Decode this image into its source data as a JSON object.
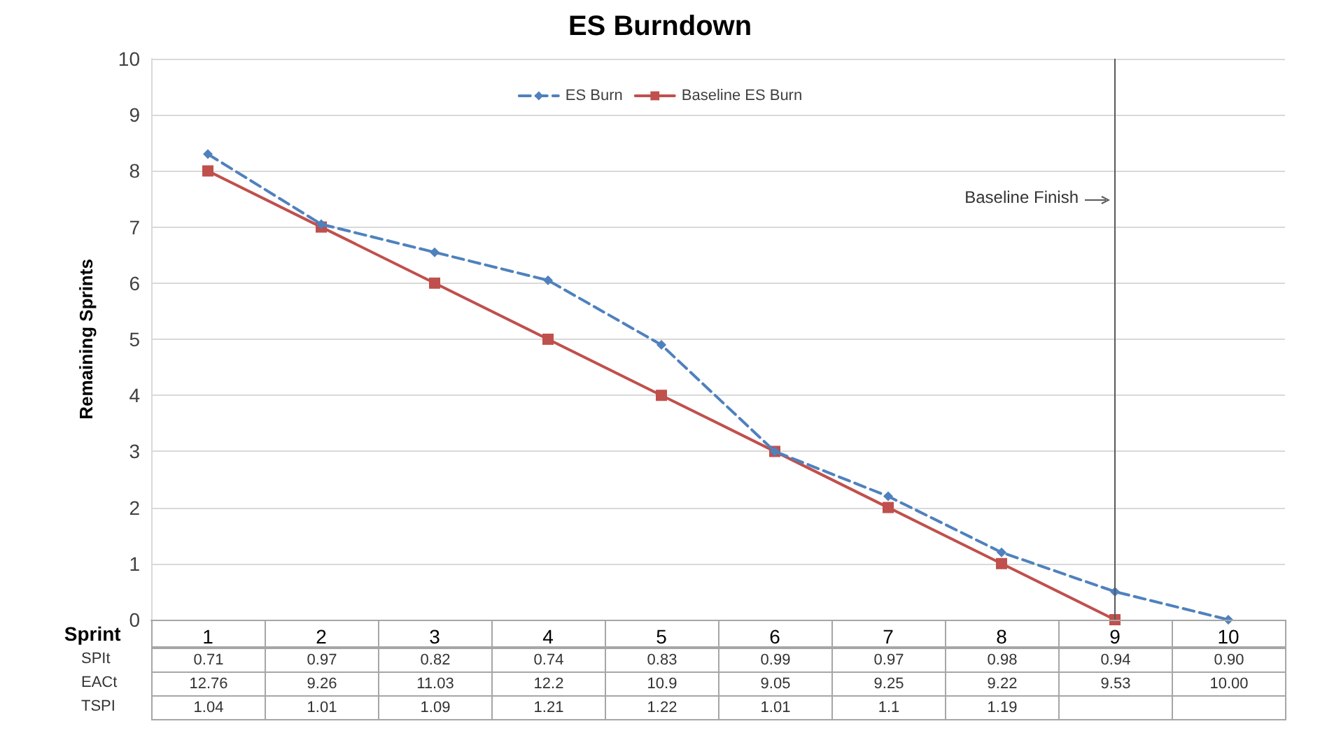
{
  "chart_data": {
    "type": "line",
    "title": "ES Burndown",
    "xlabel": "Sprint",
    "ylabel": "Remaining Sprints",
    "categories": [
      "1",
      "2",
      "3",
      "4",
      "5",
      "6",
      "7",
      "8",
      "9",
      "10"
    ],
    "series": [
      {
        "name": "ES Burn",
        "color": "#4f81bd",
        "marker": "diamond",
        "line_style": "dashed",
        "values": [
          8.3,
          7.05,
          6.55,
          6.05,
          4.9,
          3.0,
          2.2,
          1.2,
          0.5,
          0
        ]
      },
      {
        "name": "Baseline ES Burn",
        "color": "#c0504d",
        "marker": "square",
        "line_style": "solid",
        "values": [
          8,
          7,
          6,
          5,
          4,
          3,
          2,
          1,
          0,
          null
        ]
      }
    ],
    "ylim": [
      0,
      10
    ],
    "yticks": [
      0,
      1,
      2,
      3,
      4,
      5,
      6,
      7,
      8,
      9,
      10
    ],
    "grid": "y",
    "legend": "top",
    "ref_lines": [
      {
        "axis": "x",
        "value": "9",
        "label": "Baseline Finish",
        "color": "#595959"
      }
    ],
    "annotations": [
      "SPIt",
      "0.71",
      "0.97",
      "0.82",
      "0.74",
      "0.83",
      "0.99",
      "0.97",
      "0.98",
      "0.94",
      "0.90",
      "EACt",
      "12.76",
      "9.26",
      "11.03",
      "12.2",
      "10.9",
      "9.05",
      "9.25",
      "9.22",
      "9.53",
      "10.00",
      "TSPI",
      "1.04",
      "1.01",
      "1.09",
      "1.21",
      "1.22",
      "1.01",
      "1.1",
      "1.19"
    ]
  }
}
